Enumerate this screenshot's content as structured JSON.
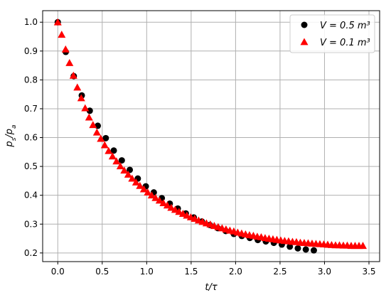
{
  "chart_data": {
    "type": "scatter",
    "xlabel": "t/τ",
    "ylabel": "p_s/p_a",
    "xlim": [
      -0.17,
      3.62
    ],
    "ylim": [
      0.17,
      1.04
    ],
    "grid": true,
    "legend_placement": "top-right",
    "x_ticks": [
      "0.0",
      "0.5",
      "1.0",
      "1.5",
      "2.0",
      "2.5",
      "3.0",
      "3.5"
    ],
    "x_tick_values": [
      0.0,
      0.5,
      1.0,
      1.5,
      2.0,
      2.5,
      3.0,
      3.5
    ],
    "y_ticks": [
      "0.2",
      "0.3",
      "0.4",
      "0.5",
      "0.6",
      "0.7",
      "0.8",
      "0.9",
      "1.0"
    ],
    "y_tick_values": [
      0.2,
      0.3,
      0.4,
      0.5,
      0.6,
      0.7,
      0.8,
      0.9,
      1.0
    ],
    "series": [
      {
        "name": "V = 0.5 m³",
        "marker": "circle",
        "color": "#000000",
        "x": [
          0.0,
          0.09,
          0.18,
          0.27,
          0.36,
          0.45,
          0.54,
          0.63,
          0.72,
          0.81,
          0.9,
          0.99,
          1.08,
          1.17,
          1.26,
          1.35,
          1.44,
          1.53,
          1.62,
          1.71,
          1.8,
          1.89,
          1.98,
          2.07,
          2.16,
          2.25,
          2.34,
          2.43,
          2.52,
          2.61,
          2.7,
          2.79,
          2.88
        ],
        "y": [
          1.0,
          0.897,
          0.813,
          0.746,
          0.693,
          0.641,
          0.598,
          0.555,
          0.521,
          0.488,
          0.458,
          0.431,
          0.41,
          0.39,
          0.371,
          0.354,
          0.337,
          0.323,
          0.309,
          0.297,
          0.286,
          0.276,
          0.266,
          0.259,
          0.252,
          0.245,
          0.24,
          0.235,
          0.229,
          0.222,
          0.216,
          0.212,
          0.209
        ]
      },
      {
        "name": "V = 0.1 m³",
        "marker": "triangle",
        "color": "#ff0000",
        "x": [
          0.0,
          0.044,
          0.088,
          0.132,
          0.176,
          0.22,
          0.264,
          0.308,
          0.352,
          0.396,
          0.44,
          0.484,
          0.528,
          0.572,
          0.616,
          0.66,
          0.704,
          0.748,
          0.792,
          0.836,
          0.88,
          0.924,
          0.968,
          1.012,
          1.056,
          1.1,
          1.144,
          1.188,
          1.232,
          1.276,
          1.32,
          1.364,
          1.408,
          1.452,
          1.496,
          1.54,
          1.584,
          1.628,
          1.672,
          1.716,
          1.76,
          1.804,
          1.848,
          1.892,
          1.936,
          1.98,
          2.024,
          2.068,
          2.112,
          2.156,
          2.2,
          2.244,
          2.288,
          2.332,
          2.376,
          2.42,
          2.464,
          2.508,
          2.552,
          2.596,
          2.64,
          2.684,
          2.728,
          2.772,
          2.816,
          2.86,
          2.904,
          2.948,
          2.992,
          3.036,
          3.08,
          3.124,
          3.168,
          3.212,
          3.256,
          3.3,
          3.344,
          3.388,
          3.432
        ],
        "y": [
          1.0,
          0.957,
          0.906,
          0.859,
          0.815,
          0.774,
          0.737,
          0.702,
          0.67,
          0.644,
          0.618,
          0.596,
          0.574,
          0.554,
          0.535,
          0.518,
          0.501,
          0.486,
          0.472,
          0.458,
          0.445,
          0.433,
          0.421,
          0.41,
          0.4,
          0.391,
          0.382,
          0.373,
          0.365,
          0.357,
          0.35,
          0.343,
          0.336,
          0.33,
          0.324,
          0.319,
          0.313,
          0.308,
          0.303,
          0.299,
          0.294,
          0.29,
          0.286,
          0.282,
          0.278,
          0.275,
          0.271,
          0.268,
          0.265,
          0.262,
          0.26,
          0.257,
          0.255,
          0.252,
          0.25,
          0.248,
          0.246,
          0.244,
          0.242,
          0.241,
          0.239,
          0.238,
          0.236,
          0.235,
          0.234,
          0.233,
          0.232,
          0.231,
          0.23,
          0.229,
          0.228,
          0.227,
          0.227,
          0.226,
          0.226,
          0.225,
          0.225,
          0.225,
          0.225
        ]
      }
    ]
  }
}
